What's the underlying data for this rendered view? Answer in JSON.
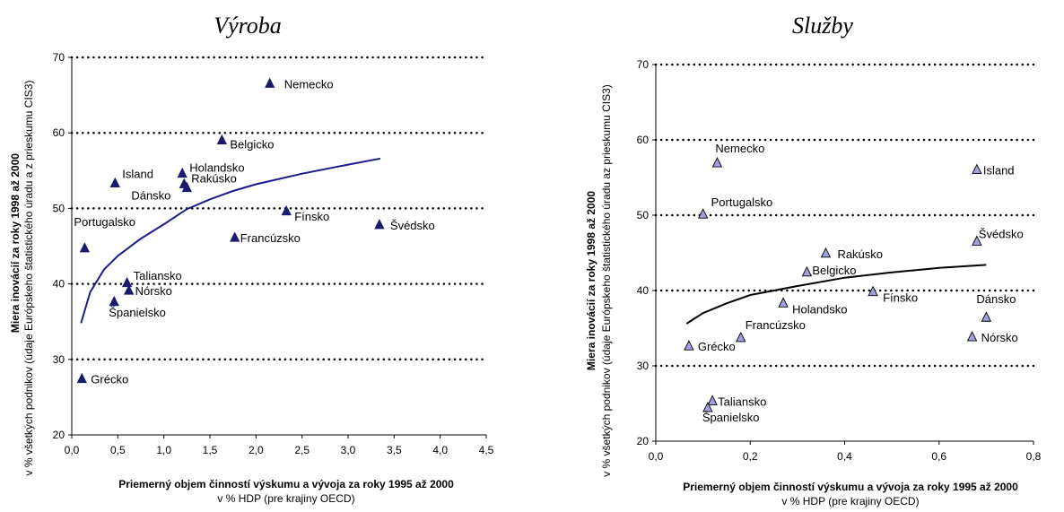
{
  "chart_data": [
    {
      "type": "scatter",
      "title": "Výroba",
      "xlabel": "Priemerný objem činností výskumu a vývoja za roky 1995 až 2000",
      "xlabel_sub": "v % HDP (pre krajiny OECD)",
      "ylabel": "Miera inovácií za roky 1998 až 2000",
      "ylabel_sub": "v % všetkých podnikov (údaje Európskeho štatistického úradu a z prieskumu CIS3)",
      "xlim": [
        0,
        4.5
      ],
      "ylim": [
        20,
        70
      ],
      "x_ticks": [
        "0,0",
        "0,5",
        "1,0",
        "1,5",
        "2,0",
        "2,5",
        "3,0",
        "3,5",
        "4,0",
        "4,5"
      ],
      "y_ticks": [
        "20",
        "30",
        "40",
        "50",
        "60",
        "70"
      ],
      "grid": "horizontal-dotted",
      "marker": "filled-triangle",
      "marker_color": "#1a1a6e",
      "trend_color": "#1a1a8c",
      "points": [
        {
          "label": "Nemecko",
          "x": 2.15,
          "y": 66.5
        },
        {
          "label": "Belgicko",
          "x": 1.63,
          "y": 59.0
        },
        {
          "label": "Island",
          "x": 0.47,
          "y": 53.3
        },
        {
          "label": "Holandsko",
          "x": 1.2,
          "y": 54.6
        },
        {
          "label": "Rakúsko",
          "x": 1.22,
          "y": 53.2
        },
        {
          "label": "Dánsko",
          "x": 1.25,
          "y": 52.7
        },
        {
          "label": "Fínsko",
          "x": 2.33,
          "y": 49.6
        },
        {
          "label": "Švédsko",
          "x": 3.34,
          "y": 47.8
        },
        {
          "label": "Portugalsko",
          "x": 0.14,
          "y": 44.7
        },
        {
          "label": "Francúzsko",
          "x": 1.77,
          "y": 46.1
        },
        {
          "label": "Taliansko",
          "x": 0.6,
          "y": 40.1
        },
        {
          "label": "Nórsko",
          "x": 0.62,
          "y": 39.1
        },
        {
          "label": "Španielsko",
          "x": 0.46,
          "y": 37.6
        },
        {
          "label": "Grécko",
          "x": 0.11,
          "y": 27.4
        }
      ],
      "trend": [
        [
          0.1,
          34.8
        ],
        [
          0.2,
          38.9
        ],
        [
          0.35,
          41.9
        ],
        [
          0.5,
          43.7
        ],
        [
          0.75,
          46.0
        ],
        [
          1.0,
          47.9
        ],
        [
          1.25,
          49.9
        ],
        [
          1.5,
          51.2
        ],
        [
          1.75,
          52.3
        ],
        [
          2.0,
          53.2
        ],
        [
          2.5,
          54.6
        ],
        [
          3.0,
          55.8
        ],
        [
          3.35,
          56.6
        ]
      ]
    },
    {
      "type": "scatter",
      "title": "Služby",
      "xlabel": "Priemerný objem činností výskumu a vývoja za roky 1995 až 2000",
      "xlabel_sub": "v % HDP (pre krajiny OECD)",
      "ylabel": "Miera inovácií za roky 1998 až 2000",
      "ylabel_sub": "v % všetkých podnikov (údaje Európskeho štatistického úradu az prieskumu CIS3)",
      "xlim": [
        0,
        0.8
      ],
      "ylim": [
        20,
        70
      ],
      "x_ticks": [
        "0,0",
        "0,2",
        "0,4",
        "0,6",
        "0,8"
      ],
      "y_ticks": [
        "20",
        "30",
        "40",
        "50",
        "60",
        "70"
      ],
      "grid": "horizontal-dotted",
      "marker": "open-triangle",
      "marker_color": "#a0a0e0",
      "trend_color": "#000000",
      "points": [
        {
          "label": "Nemecko",
          "x": 0.13,
          "y": 56.9
        },
        {
          "label": "Island",
          "x": 0.68,
          "y": 56.0
        },
        {
          "label": "Portugalsko",
          "x": 0.1,
          "y": 50.1
        },
        {
          "label": "Švédsko",
          "x": 0.68,
          "y": 46.5
        },
        {
          "label": "Rakúsko",
          "x": 0.36,
          "y": 44.9
        },
        {
          "label": "Belgicko",
          "x": 0.32,
          "y": 42.4
        },
        {
          "label": "Holandsko",
          "x": 0.27,
          "y": 38.3
        },
        {
          "label": "Fínsko",
          "x": 0.46,
          "y": 39.8
        },
        {
          "label": "Dánsko",
          "x": 0.7,
          "y": 36.4
        },
        {
          "label": "Francúzsko",
          "x": 0.18,
          "y": 33.7
        },
        {
          "label": "Nórsko",
          "x": 0.67,
          "y": 33.8
        },
        {
          "label": "Grécko",
          "x": 0.07,
          "y": 32.6
        },
        {
          "label": "Taliansko",
          "x": 0.12,
          "y": 25.3
        },
        {
          "label": "Španielsko",
          "x": 0.11,
          "y": 24.4
        }
      ],
      "trend": [
        [
          0.065,
          35.6
        ],
        [
          0.1,
          37.0
        ],
        [
          0.15,
          38.3
        ],
        [
          0.2,
          39.4
        ],
        [
          0.3,
          40.6
        ],
        [
          0.4,
          41.7
        ],
        [
          0.5,
          42.4
        ],
        [
          0.6,
          43.0
        ],
        [
          0.7,
          43.4
        ]
      ]
    }
  ]
}
